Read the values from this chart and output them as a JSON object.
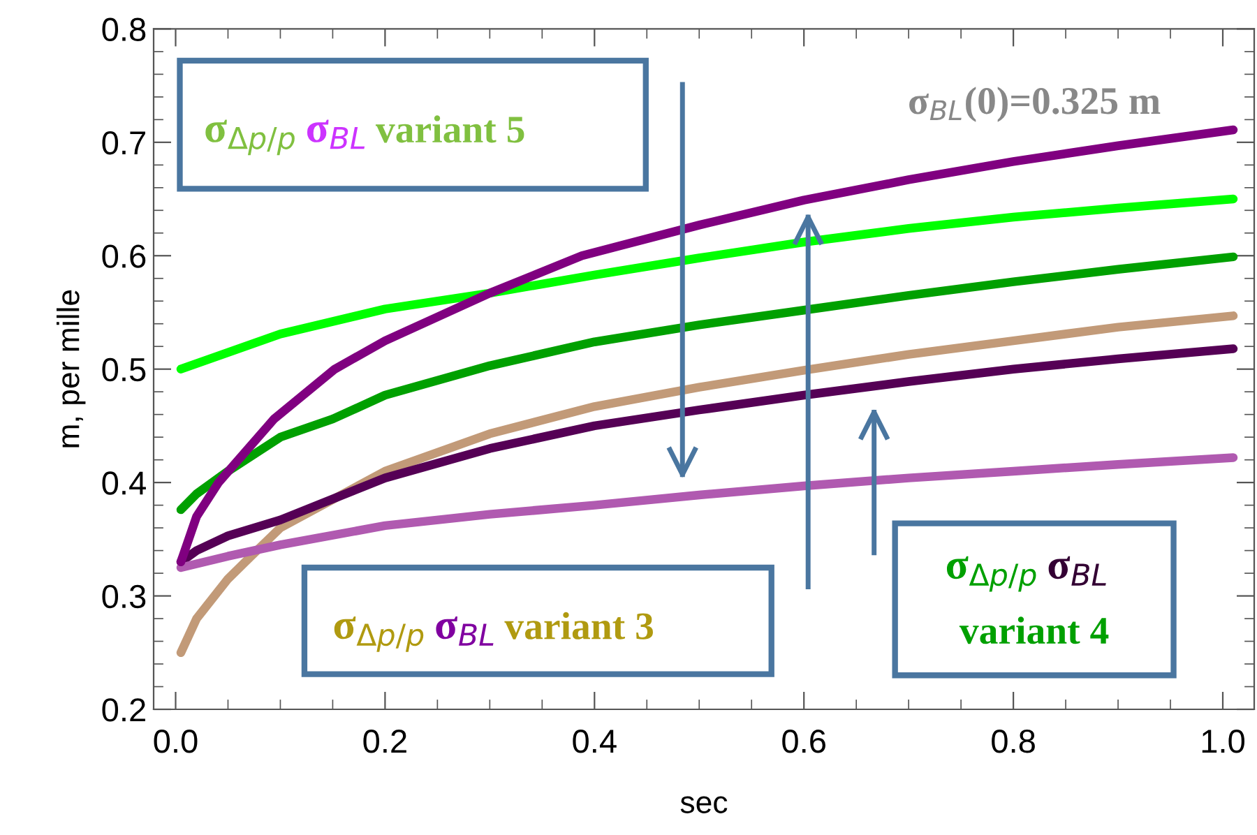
{
  "chart_data": {
    "type": "line",
    "xlabel": "sec",
    "ylabel": "m, per mille",
    "xlim": [
      -0.021,
      1.03
    ],
    "ylim": [
      0.2,
      0.8
    ],
    "xticks": [
      {
        "value": 0,
        "label": "0.0"
      },
      {
        "value": 0.05,
        "label": null
      },
      {
        "value": 0.1,
        "label": null
      },
      {
        "value": 0.15,
        "label": null
      },
      {
        "value": 0.2,
        "label": "0.2"
      },
      {
        "value": 0.25,
        "label": null
      },
      {
        "value": 0.3,
        "label": null
      },
      {
        "value": 0.35,
        "label": null
      },
      {
        "value": 0.4,
        "label": "0.4"
      },
      {
        "value": 0.45,
        "label": null
      },
      {
        "value": 0.5,
        "label": null
      },
      {
        "value": 0.55,
        "label": null
      },
      {
        "value": 0.6,
        "label": "0.6"
      },
      {
        "value": 0.65,
        "label": null
      },
      {
        "value": 0.7,
        "label": null
      },
      {
        "value": 0.75,
        "label": null
      },
      {
        "value": 0.8,
        "label": "0.8"
      },
      {
        "value": 0.85,
        "label": null
      },
      {
        "value": 0.9,
        "label": null
      },
      {
        "value": 0.95,
        "label": null
      },
      {
        "value": 1.0,
        "label": "1.0"
      }
    ],
    "yticks": [
      0.2,
      {
        "value": 0.22,
        "label": null
      },
      {
        "value": 0.24,
        "label": null
      },
      {
        "value": 0.26,
        "label": null
      },
      {
        "value": 0.28,
        "label": null
      },
      0.3,
      {
        "value": 0.32,
        "label": null
      },
      {
        "value": 0.34,
        "label": null
      },
      {
        "value": 0.36,
        "label": null
      },
      {
        "value": 0.38,
        "label": null
      },
      0.4,
      {
        "value": 0.42,
        "label": null
      },
      {
        "value": 0.44,
        "label": null
      },
      {
        "value": 0.46,
        "label": null
      },
      {
        "value": 0.48,
        "label": null
      },
      0.5,
      {
        "value": 0.52,
        "label": null
      },
      {
        "value": 0.54,
        "label": null
      },
      {
        "value": 0.56,
        "label": null
      },
      {
        "value": 0.58,
        "label": null
      },
      0.6,
      {
        "value": 0.62,
        "label": null
      },
      {
        "value": 0.64,
        "label": null
      },
      {
        "value": 0.66,
        "label": null
      },
      {
        "value": 0.68,
        "label": null
      },
      0.7,
      {
        "value": 0.72,
        "label": null
      },
      {
        "value": 0.74,
        "label": null
      },
      {
        "value": 0.76,
        "label": null
      },
      {
        "value": 0.78,
        "label": null
      },
      0.8
    ],
    "grid": false,
    "legend": false,
    "marker": "none",
    "line_style": "solid",
    "series": [
      {
        "color": "#00ff00",
        "x": [
          0.005,
          0.1,
          0.2,
          0.3,
          0.4,
          0.5,
          0.6,
          0.7,
          0.8,
          0.9,
          1.01
        ],
        "values": [
          0.5,
          0.531,
          0.553,
          0.567,
          0.583,
          0.598,
          0.612,
          0.624,
          0.634,
          0.642,
          0.65
        ]
      },
      {
        "color": "#00a000",
        "x": [
          0.005,
          0.02,
          0.05,
          0.1,
          0.15,
          0.2,
          0.3,
          0.4,
          0.5,
          0.6,
          0.7,
          0.8,
          0.9,
          1.01
        ],
        "values": [
          0.376,
          0.39,
          0.41,
          0.44,
          0.456,
          0.477,
          0.503,
          0.524,
          0.539,
          0.552,
          0.565,
          0.577,
          0.588,
          0.599
        ]
      },
      {
        "color": "#c29a78",
        "x": [
          0.005,
          0.02,
          0.05,
          0.072,
          0.1,
          0.2,
          0.3,
          0.4,
          0.5,
          0.6,
          0.7,
          0.8,
          0.9,
          1.01
        ],
        "values": [
          0.25,
          0.28,
          0.315,
          0.335,
          0.36,
          0.41,
          0.443,
          0.467,
          0.484,
          0.499,
          0.513,
          0.525,
          0.537,
          0.547
        ]
      },
      {
        "color": "#550055",
        "x": [
          0.005,
          0.02,
          0.05,
          0.1,
          0.2,
          0.3,
          0.4,
          0.5,
          0.6,
          0.7,
          0.8,
          0.9,
          1.01
        ],
        "values": [
          0.33,
          0.34,
          0.353,
          0.367,
          0.404,
          0.43,
          0.45,
          0.464,
          0.477,
          0.489,
          0.5,
          0.509,
          0.518
        ]
      },
      {
        "color": "#b05ab0",
        "x": [
          0.005,
          0.05,
          0.1,
          0.2,
          0.3,
          0.4,
          0.5,
          0.6,
          0.7,
          0.8,
          0.9,
          1.01
        ],
        "values": [
          0.325,
          0.335,
          0.345,
          0.362,
          0.372,
          0.38,
          0.389,
          0.397,
          0.404,
          0.41,
          0.416,
          0.422
        ]
      },
      {
        "color": "#800080",
        "x": [
          0.005,
          0.02,
          0.041,
          0.094,
          0.152,
          0.2,
          0.3,
          0.388,
          0.5,
          0.6,
          0.7,
          0.8,
          0.9,
          1.01
        ],
        "values": [
          0.33,
          0.37,
          0.4,
          0.456,
          0.5,
          0.525,
          0.567,
          0.6,
          0.627,
          0.649,
          0.667,
          0.683,
          0.697,
          0.711
        ]
      }
    ],
    "annotations": [
      "σ$_{Δp/p}$",
      "σ$_{BL}$",
      "variant 5",
      "σ$_{Δp/p}$",
      "σ$_{BL}$",
      "variant 3",
      "σ$_{Δp/p}$",
      "σ$_{BL}$",
      "variant 4",
      "σ$_{BL}$(0)=0.325 m"
    ]
  }
}
